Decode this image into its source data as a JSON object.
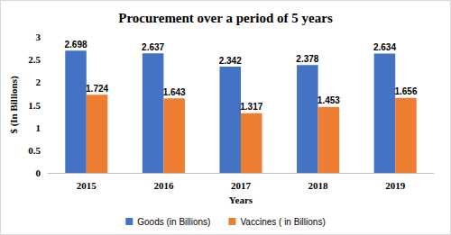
{
  "chart_data": {
    "type": "bar",
    "title": "Procurement over a period of 5 years",
    "x_label": "Years",
    "y_label": "$ (In Billions)",
    "categories": [
      "2015",
      "2016",
      "2017",
      "2018",
      "2019"
    ],
    "series": [
      {
        "name": "Goods (in Billions)",
        "color": "#4472c4",
        "values": [
          2.698,
          2.637,
          2.342,
          2.378,
          2.634
        ]
      },
      {
        "name": "Vaccines ( in Billions)",
        "color": "#ed7d31",
        "values": [
          1.724,
          1.643,
          1.317,
          1.453,
          1.656
        ]
      }
    ],
    "ylim": [
      0,
      3
    ],
    "yticks": [
      0,
      0.5,
      1,
      1.5,
      2,
      2.5,
      3
    ],
    "grid": false,
    "legend": "bottom",
    "data_labels": true
  }
}
